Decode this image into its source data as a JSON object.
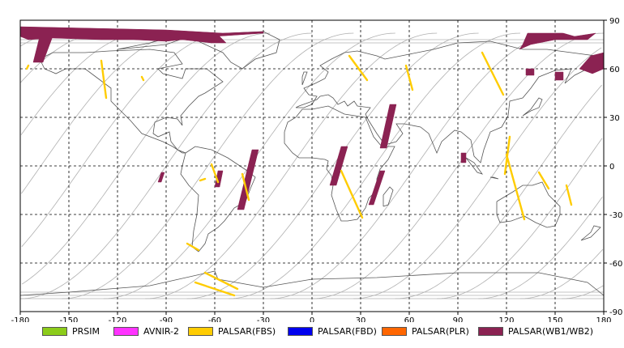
{
  "map": {
    "lon_ticks": [
      "-180",
      "-150",
      "-120",
      "-90",
      "-60",
      "-30",
      "0",
      "30",
      "60",
      "90",
      "120",
      "150",
      "180"
    ],
    "lat_ticks": [
      "90",
      "60",
      "30",
      "0",
      "-30",
      "-60",
      "-90"
    ],
    "colors": {
      "frame": "#000000",
      "grid": "#000000",
      "coast": "#555555",
      "orbit": "#b0b0b0"
    }
  },
  "legend": [
    {
      "label": "PRSIM",
      "color": "#8ccc1a"
    },
    {
      "label": "AVNIR-2",
      "color": "#ff33ff"
    },
    {
      "label": "PALSAR(FBS)",
      "color": "#ffcc00"
    },
    {
      "label": "PALSAR(FBD)",
      "color": "#0000ee"
    },
    {
      "label": "PALSAR(PLR)",
      "color": "#ff6600"
    },
    {
      "label": "PALSAR(WB1/WB2)",
      "color": "#8b2252"
    }
  ]
}
